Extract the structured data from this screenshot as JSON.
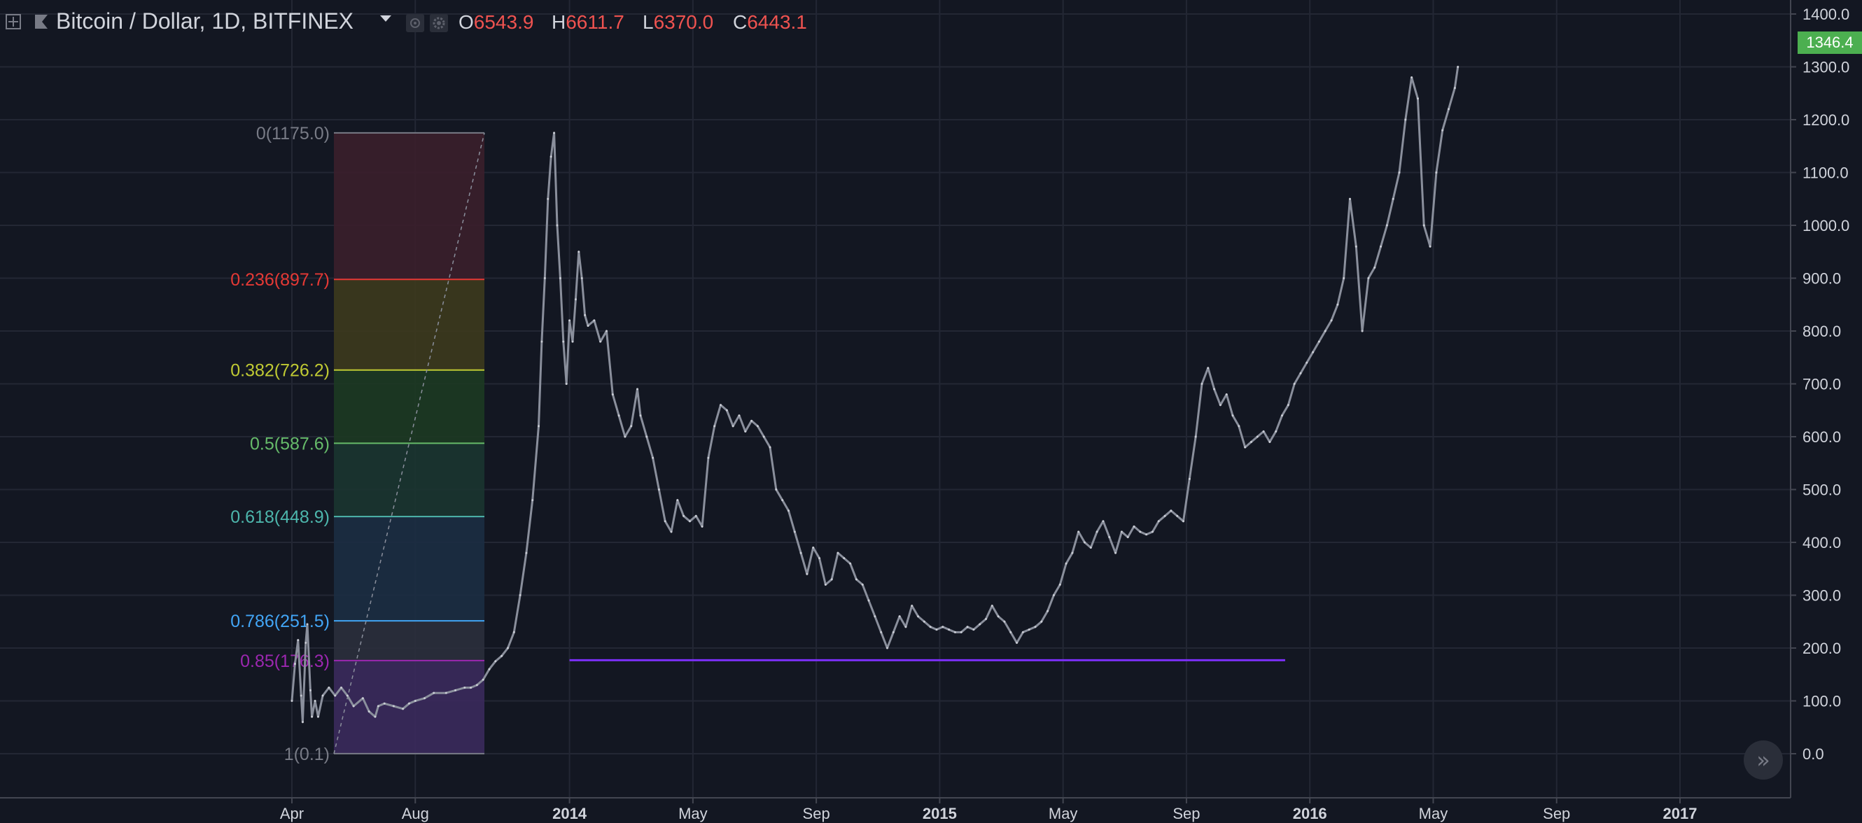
{
  "header": {
    "symbol_title": "Bitcoin / Dollar, 1D, BITFINEX",
    "ohlc": [
      {
        "key": "O",
        "value": "6543.9"
      },
      {
        "key": "H",
        "value": "6611.7"
      },
      {
        "key": "L",
        "value": "6370.0"
      },
      {
        "key": "C",
        "value": "6443.1"
      }
    ],
    "icons": [
      "crosshair-icon",
      "flag-icon",
      "eye-icon",
      "gear-icon",
      "dropdown-caret-icon"
    ]
  },
  "price_tag": "1346.4",
  "scroll_button_label": "»",
  "colors": {
    "background": "#131722",
    "grid": "#232734",
    "axis_text": "#d1d4dc",
    "candle": "#8a8f9c",
    "support_line": "#7b2ff7",
    "ohlc_values": "#ef5350",
    "price_tag": "#4caf50"
  },
  "chart_data": {
    "type": "line",
    "title": "",
    "xlabel": "",
    "ylabel": "",
    "ylim": [
      -60,
      1430
    ],
    "y_ticks": [
      "1400.0",
      "1300.0",
      "1200.0",
      "1100.0",
      "1000.0",
      "900.0",
      "800.0",
      "700.0",
      "600.0",
      "500.0",
      "400.0",
      "300.0",
      "200.0",
      "100.0",
      "0.0"
    ],
    "y_tick_values": [
      1400,
      1300,
      1200,
      1100,
      1000,
      900,
      800,
      700,
      600,
      500,
      400,
      300,
      200,
      100,
      0
    ],
    "x_ticks": [
      {
        "label": "Apr",
        "month": 0
      },
      {
        "label": "Aug",
        "month": 4
      },
      {
        "label": "2014",
        "month": 9
      },
      {
        "label": "May",
        "month": 13
      },
      {
        "label": "Sep",
        "month": 17
      },
      {
        "label": "2015",
        "month": 21
      },
      {
        "label": "May",
        "month": 25
      },
      {
        "label": "Sep",
        "month": 29
      },
      {
        "label": "2016",
        "month": 33
      },
      {
        "label": "May",
        "month": 37
      },
      {
        "label": "Sep",
        "month": 41
      },
      {
        "label": "2017",
        "month": 45
      }
    ],
    "x_start_month": -0.1,
    "x_end_month": 48.7,
    "series": [
      {
        "points": [
          [
            0.0,
            100
          ],
          [
            0.1,
            170
          ],
          [
            0.2,
            215
          ],
          [
            0.3,
            110
          ],
          [
            0.35,
            60
          ],
          [
            0.45,
            210
          ],
          [
            0.5,
            245
          ],
          [
            0.6,
            120
          ],
          [
            0.65,
            70
          ],
          [
            0.75,
            100
          ],
          [
            0.85,
            70
          ],
          [
            1.0,
            110
          ],
          [
            1.2,
            125
          ],
          [
            1.4,
            110
          ],
          [
            1.6,
            125
          ],
          [
            1.8,
            110
          ],
          [
            2.0,
            90
          ],
          [
            2.3,
            105
          ],
          [
            2.5,
            80
          ],
          [
            2.7,
            70
          ],
          [
            2.8,
            90
          ],
          [
            3.0,
            95
          ],
          [
            3.3,
            90
          ],
          [
            3.6,
            85
          ],
          [
            3.8,
            95
          ],
          [
            4.0,
            100
          ],
          [
            4.3,
            105
          ],
          [
            4.6,
            115
          ],
          [
            5.0,
            115
          ],
          [
            5.3,
            120
          ],
          [
            5.6,
            125
          ],
          [
            5.8,
            125
          ],
          [
            6.0,
            130
          ],
          [
            6.2,
            140
          ],
          [
            6.4,
            160
          ],
          [
            6.6,
            175
          ],
          [
            6.8,
            185
          ],
          [
            7.0,
            200
          ],
          [
            7.2,
            230
          ],
          [
            7.4,
            300
          ],
          [
            7.6,
            380
          ],
          [
            7.8,
            480
          ],
          [
            8.0,
            620
          ],
          [
            8.1,
            780
          ],
          [
            8.2,
            900
          ],
          [
            8.3,
            1050
          ],
          [
            8.4,
            1130
          ],
          [
            8.5,
            1175
          ],
          [
            8.6,
            1000
          ],
          [
            8.7,
            900
          ],
          [
            8.8,
            780
          ],
          [
            8.9,
            700
          ],
          [
            9.0,
            820
          ],
          [
            9.1,
            780
          ],
          [
            9.2,
            860
          ],
          [
            9.3,
            950
          ],
          [
            9.4,
            900
          ],
          [
            9.5,
            830
          ],
          [
            9.6,
            810
          ],
          [
            9.8,
            820
          ],
          [
            10.0,
            780
          ],
          [
            10.2,
            800
          ],
          [
            10.4,
            680
          ],
          [
            10.6,
            640
          ],
          [
            10.8,
            600
          ],
          [
            11.0,
            620
          ],
          [
            11.2,
            690
          ],
          [
            11.3,
            640
          ],
          [
            11.5,
            600
          ],
          [
            11.7,
            560
          ],
          [
            11.9,
            500
          ],
          [
            12.1,
            440
          ],
          [
            12.3,
            420
          ],
          [
            12.5,
            480
          ],
          [
            12.7,
            450
          ],
          [
            12.9,
            440
          ],
          [
            13.1,
            450
          ],
          [
            13.3,
            430
          ],
          [
            13.5,
            560
          ],
          [
            13.7,
            620
          ],
          [
            13.9,
            660
          ],
          [
            14.1,
            650
          ],
          [
            14.3,
            620
          ],
          [
            14.5,
            640
          ],
          [
            14.7,
            610
          ],
          [
            14.9,
            630
          ],
          [
            15.1,
            620
          ],
          [
            15.3,
            600
          ],
          [
            15.5,
            580
          ],
          [
            15.7,
            500
          ],
          [
            15.9,
            480
          ],
          [
            16.1,
            460
          ],
          [
            16.3,
            420
          ],
          [
            16.5,
            380
          ],
          [
            16.7,
            340
          ],
          [
            16.9,
            390
          ],
          [
            17.1,
            370
          ],
          [
            17.3,
            320
          ],
          [
            17.5,
            330
          ],
          [
            17.7,
            380
          ],
          [
            17.9,
            370
          ],
          [
            18.1,
            360
          ],
          [
            18.3,
            330
          ],
          [
            18.5,
            320
          ],
          [
            18.7,
            290
          ],
          [
            18.9,
            260
          ],
          [
            19.1,
            230
          ],
          [
            19.3,
            200
          ],
          [
            19.5,
            230
          ],
          [
            19.7,
            260
          ],
          [
            19.9,
            240
          ],
          [
            20.1,
            280
          ],
          [
            20.3,
            260
          ],
          [
            20.5,
            250
          ],
          [
            20.7,
            240
          ],
          [
            20.9,
            235
          ],
          [
            21.1,
            240
          ],
          [
            21.3,
            235
          ],
          [
            21.5,
            230
          ],
          [
            21.7,
            230
          ],
          [
            21.9,
            240
          ],
          [
            22.1,
            235
          ],
          [
            22.3,
            245
          ],
          [
            22.5,
            255
          ],
          [
            22.7,
            280
          ],
          [
            22.9,
            260
          ],
          [
            23.1,
            250
          ],
          [
            23.3,
            230
          ],
          [
            23.5,
            210
          ],
          [
            23.7,
            230
          ],
          [
            23.9,
            235
          ],
          [
            24.1,
            240
          ],
          [
            24.3,
            250
          ],
          [
            24.5,
            270
          ],
          [
            24.7,
            300
          ],
          [
            24.9,
            320
          ],
          [
            25.1,
            360
          ],
          [
            25.3,
            380
          ],
          [
            25.5,
            420
          ],
          [
            25.7,
            400
          ],
          [
            25.9,
            390
          ],
          [
            26.1,
            420
          ],
          [
            26.3,
            440
          ],
          [
            26.5,
            410
          ],
          [
            26.7,
            380
          ],
          [
            26.9,
            420
          ],
          [
            27.1,
            410
          ],
          [
            27.3,
            430
          ],
          [
            27.5,
            420
          ],
          [
            27.7,
            415
          ],
          [
            27.9,
            420
          ],
          [
            28.1,
            440
          ],
          [
            28.3,
            450
          ],
          [
            28.5,
            460
          ],
          [
            28.7,
            450
          ],
          [
            28.9,
            440
          ],
          [
            29.1,
            520
          ],
          [
            29.3,
            600
          ],
          [
            29.5,
            700
          ],
          [
            29.7,
            730
          ],
          [
            29.9,
            690
          ],
          [
            30.1,
            660
          ],
          [
            30.3,
            680
          ],
          [
            30.5,
            640
          ],
          [
            30.7,
            620
          ],
          [
            30.9,
            580
          ],
          [
            31.1,
            590
          ],
          [
            31.3,
            600
          ],
          [
            31.5,
            610
          ],
          [
            31.7,
            590
          ],
          [
            31.9,
            610
          ],
          [
            32.1,
            640
          ],
          [
            32.3,
            660
          ],
          [
            32.5,
            700
          ],
          [
            32.7,
            720
          ],
          [
            32.9,
            740
          ],
          [
            33.1,
            760
          ],
          [
            33.3,
            780
          ],
          [
            33.5,
            800
          ],
          [
            33.7,
            820
          ],
          [
            33.9,
            850
          ],
          [
            34.1,
            900
          ],
          [
            34.3,
            1050
          ],
          [
            34.5,
            960
          ],
          [
            34.7,
            800
          ],
          [
            34.9,
            900
          ],
          [
            35.1,
            920
          ],
          [
            35.3,
            960
          ],
          [
            35.5,
            1000
          ],
          [
            35.7,
            1050
          ],
          [
            35.9,
            1100
          ],
          [
            36.1,
            1200
          ],
          [
            36.3,
            1280
          ],
          [
            36.5,
            1240
          ],
          [
            36.7,
            1000
          ],
          [
            36.9,
            960
          ],
          [
            37.1,
            1100
          ],
          [
            37.3,
            1180
          ],
          [
            37.5,
            1220
          ],
          [
            37.7,
            1260
          ],
          [
            37.8,
            1300
          ]
        ]
      }
    ],
    "support_line": {
      "value": 177,
      "from_month": 9.0,
      "to_month": 32.2
    },
    "fibonacci": {
      "high": 1175.0,
      "low": 0.1,
      "levels": [
        {
          "label": "0(1175.0)",
          "ratio": 0,
          "price": 1175.0,
          "color": "#787b86",
          "fill": "#3b1f2b"
        },
        {
          "label": "0.236(897.7)",
          "ratio": 0.236,
          "price": 897.7,
          "color": "#e53935",
          "fill": "#3d3a1d"
        },
        {
          "label": "0.382(726.2)",
          "ratio": 0.382,
          "price": 726.2,
          "color": "#c0ca33",
          "fill": "#1d3a22"
        },
        {
          "label": "0.5(587.6)",
          "ratio": 0.5,
          "price": 587.6,
          "color": "#66bb6a",
          "fill": "#1b3530"
        },
        {
          "label": "0.618(448.9)",
          "ratio": 0.618,
          "price": 448.9,
          "color": "#4db6ac",
          "fill": "#1c2e42"
        },
        {
          "label": "0.786(251.5)",
          "ratio": 0.786,
          "price": 251.5,
          "color": "#42a5f5",
          "fill": "#2b2f3c"
        },
        {
          "label": "0.85(176.3)",
          "ratio": 0.85,
          "price": 176.3,
          "color": "#9c27b0",
          "fill": "#3b2a5c"
        },
        {
          "label": "1(0.1)",
          "ratio": 1,
          "price": 0.1,
          "color": "#787b86",
          "fill": null
        }
      ]
    }
  }
}
